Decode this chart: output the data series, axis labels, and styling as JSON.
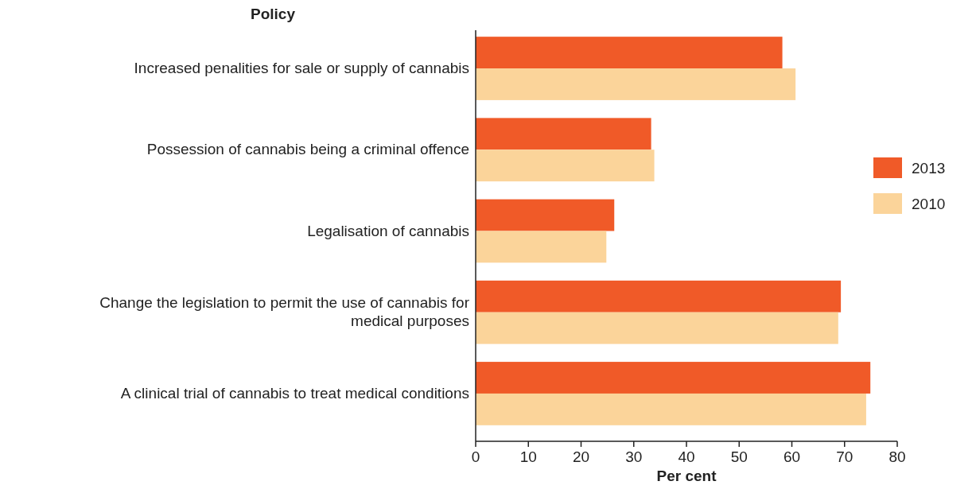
{
  "chart_data": {
    "type": "bar",
    "orientation": "horizontal",
    "ylabel": "Policy",
    "xlabel": "Per cent",
    "categories": [
      "Increased penalities for sale or supply of cannabis",
      "Possession of cannabis being a criminal offence",
      "Legalisation of cannabis",
      "Change the legislation to permit the use of cannabis for medical purposes",
      "A clinical trial of cannabis to treat medical conditions"
    ],
    "series": [
      {
        "name": "2013",
        "color": "#f05a28",
        "values": [
          58.2,
          33.3,
          26.3,
          69.3,
          74.9
        ]
      },
      {
        "name": "2010",
        "color": "#fbd49a",
        "values": [
          60.7,
          33.9,
          24.8,
          68.8,
          74.1
        ]
      }
    ],
    "xlim": [
      0,
      80
    ],
    "xticks": [
      0,
      10,
      20,
      30,
      40,
      50,
      60,
      70,
      80
    ],
    "legend": "right",
    "grid": false
  }
}
